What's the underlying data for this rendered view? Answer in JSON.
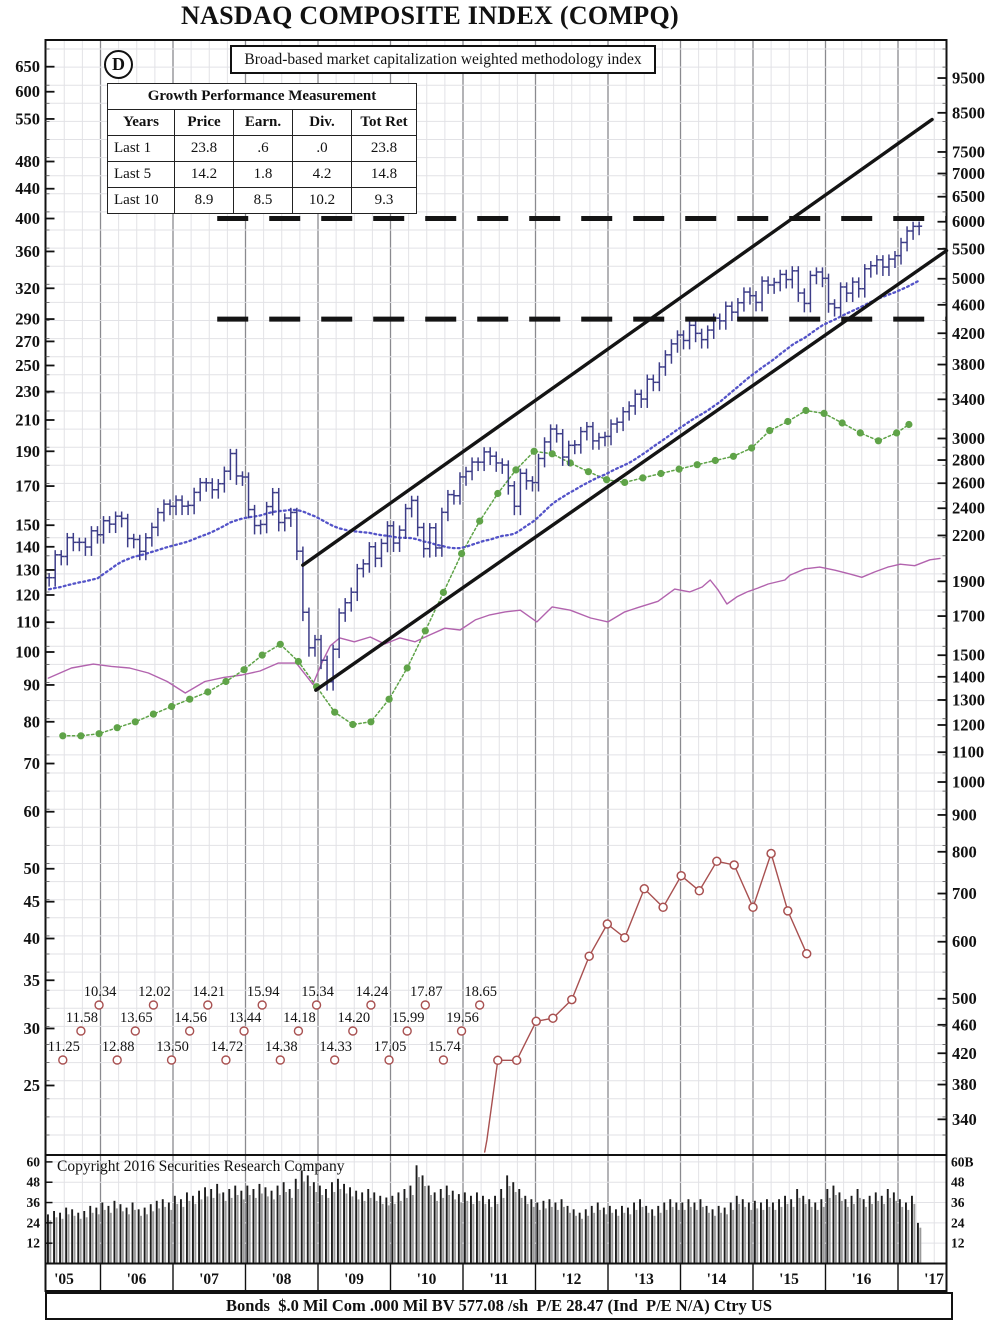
{
  "title": "NASDAQ COMPOSITE INDEX (COMPQ)",
  "badge_letter": "D",
  "subtitle": "Broad-based market capitalization weighted methodology index",
  "growth_table": {
    "header": "Growth Performance Measurement",
    "columns": [
      "Years",
      "Price",
      "Earn.",
      "Div.",
      "Tot Ret"
    ],
    "rows": [
      [
        "Last 1",
        "23.8",
        ".6",
        ".0",
        "23.8"
      ],
      [
        "Last 5",
        "14.2",
        "1.8",
        "4.2",
        "14.8"
      ],
      [
        "Last 10",
        "8.9",
        "8.5",
        "10.2",
        "9.3"
      ]
    ]
  },
  "copyright_text": "Copyright 2016 Securities Research Company",
  "footer_text": "Bonds  $.0 Mil Com .000 Mil BV 577.08 /sh  P/E 28.47 (Ind  P/E N/A) Ctry US",
  "colors": {
    "price": "#3d3d88",
    "ma": "#5353c8",
    "earnings": "#5fa348",
    "relative": "#b263ae",
    "pe": "#a85050",
    "trend": "#141414",
    "grid_minor": "#e2e2e6",
    "grid_year": "#8a8a8f",
    "border": "#111111",
    "volume_dark": "#1d1d1d",
    "volume_gray": "#9a9a9a"
  },
  "chart_data": {
    "type": "line",
    "title": "NASDAQ Composite monthly price bars (log scale) with 36-month moving average, earnings line, relative line, quarterly P/E markers and monthly volume",
    "x_range_years": [
      2005.23,
      2017.68
    ],
    "grid": true,
    "left_axis_ticks": [
      650,
      600,
      550,
      480,
      440,
      400,
      360,
      320,
      290,
      270,
      250,
      230,
      210,
      190,
      170,
      150,
      140,
      130,
      120,
      110,
      100,
      90,
      80,
      70,
      60,
      50,
      45,
      40,
      35,
      30,
      25
    ],
    "right_axis_ticks": [
      9500,
      8500,
      7500,
      7000,
      6500,
      6000,
      5500,
      5000,
      4600,
      4200,
      3800,
      3400,
      3000,
      2800,
      2600,
      2400,
      2200,
      1900,
      1700,
      1500,
      1400,
      1300,
      1200,
      1100,
      1000,
      900,
      800,
      700,
      600,
      500,
      460,
      420,
      380,
      340
    ],
    "year_labels": [
      "'05",
      "'06",
      "'07",
      "'08",
      "'09",
      "'10",
      "'11",
      "'12",
      "'13",
      "'14",
      "'15",
      "'16",
      "'17"
    ],
    "dashed_resistance_levels_left_scale": [
      400,
      290
    ],
    "dashed_start_year": 2007.61,
    "trend_channel": [
      {
        "from": [
          2008.79,
          132
        ],
        "to": [
          2017.47,
          549
        ]
      },
      {
        "from": [
          2008.97,
          88.5
        ],
        "to": [
          2017.72,
          364
        ]
      }
    ],
    "price_monthly": {
      "start_year_month": "2005-04",
      "closes": [
        1922,
        2068,
        2057,
        2185,
        2152,
        2152,
        2120,
        2233,
        2205,
        2306,
        2281,
        2340,
        2323,
        2179,
        2172,
        2091,
        2184,
        2258,
        2367,
        2432,
        2415,
        2464,
        2416,
        2422,
        2525,
        2605,
        2603,
        2546,
        2596,
        2702,
        2859,
        2661,
        2652,
        2390,
        2271,
        2279,
        2413,
        2523,
        2293,
        2326,
        2368,
        2092,
        1721,
        1536,
        1577,
        1476,
        1378,
        1529,
        1717,
        1774,
        1835,
        1979,
        2009,
        2122,
        2045,
        2145,
        2269,
        2147,
        2238,
        2398,
        2461,
        2257,
        2109,
        2255,
        2114,
        2369,
        2507,
        2498,
        2653,
        2700,
        2782,
        2781,
        2874,
        2835,
        2774,
        2756,
        2579,
        2415,
        2684,
        2620,
        2605,
        2814,
        2967,
        3092,
        3046,
        2827,
        2935,
        2940,
        3067,
        3116,
        2977,
        3010,
        3020,
        3142,
        3160,
        3268,
        3329,
        3456,
        3403,
        3626,
        3590,
        3771,
        3920,
        4060,
        4177,
        4104,
        4308,
        4199,
        4115,
        4243,
        4408,
        4370,
        4580,
        4493,
        4631,
        4792,
        4736,
        4635,
        4964,
        4901,
        4941,
        5070,
        4987,
        5128,
        4777,
        4620,
        5054,
        5109,
        5007,
        4614,
        4558,
        4870,
        4775,
        4948,
        4843,
        5162,
        5213,
        5312,
        5190,
        5324,
        5383,
        5615,
        5825,
        5912,
        5915
      ]
    },
    "ma_window_months": 36,
    "ma_pre_closes": [
      1321,
      1338,
      1341,
      1464,
      1596,
      1623,
      1735,
      1810,
      1787,
      1932,
      1960,
      2003,
      2066,
      2030,
      1994,
      1920,
      1987,
      2048,
      1887,
      1838,
      1897,
      1975,
      2097,
      2175,
      2062,
      2052,
      1999
    ],
    "earnings_line_left_scale": {
      "start_year": 2005.48,
      "step_years": 0.25,
      "values": [
        76.5,
        76.5,
        77,
        78.5,
        80,
        82,
        84,
        86,
        88,
        91,
        94.5,
        99,
        102.5,
        97,
        89.5,
        82.5,
        79.3,
        80,
        86,
        95,
        107,
        121,
        137,
        152,
        166,
        179,
        190,
        188.5,
        183,
        178,
        173.5,
        172,
        174.5,
        177,
        179.5,
        182,
        184.5,
        187,
        192,
        203,
        209,
        216.5,
        214.5,
        208,
        201.5,
        196.5,
        201.5
      ],
      "tail_points": [
        [
          2017.15,
          207
        ]
      ]
    },
    "relative_line_left_scale": {
      "points": [
        [
          2005.28,
          92
        ],
        [
          2005.6,
          95
        ],
        [
          2005.9,
          96.2
        ],
        [
          2006.15,
          95.5
        ],
        [
          2006.4,
          95
        ],
        [
          2006.66,
          93.5
        ],
        [
          2006.92,
          91
        ],
        [
          2007.17,
          87.7
        ],
        [
          2007.44,
          91
        ],
        [
          2007.7,
          92.2
        ],
        [
          2007.95,
          92.9
        ],
        [
          2008.2,
          94.1
        ],
        [
          2008.45,
          96.5
        ],
        [
          2008.7,
          96.5
        ],
        [
          2008.93,
          90.2
        ],
        [
          2009.06,
          96.9
        ],
        [
          2009.17,
          102
        ],
        [
          2009.3,
          104.6
        ],
        [
          2009.5,
          103.3
        ],
        [
          2009.72,
          104.9
        ],
        [
          2009.92,
          102.6
        ],
        [
          2010.13,
          104.6
        ],
        [
          2010.34,
          103.3
        ],
        [
          2010.54,
          105.6
        ],
        [
          2010.75,
          107.9
        ],
        [
          2010.96,
          107.3
        ],
        [
          2011.17,
          110.8
        ],
        [
          2011.37,
          112.6
        ],
        [
          2011.58,
          113.7
        ],
        [
          2011.79,
          114.3
        ],
        [
          2012.02,
          110.1
        ],
        [
          2012.23,
          115.5
        ],
        [
          2012.48,
          114.3
        ],
        [
          2012.76,
          111.5
        ],
        [
          2013,
          110.1
        ],
        [
          2013.23,
          113.7
        ],
        [
          2013.44,
          115.5
        ],
        [
          2013.69,
          117.6
        ],
        [
          2013.92,
          122.3
        ],
        [
          2014.13,
          121.2
        ],
        [
          2014.3,
          123.1
        ],
        [
          2014.41,
          125.9
        ],
        [
          2014.52,
          121.9
        ],
        [
          2014.64,
          116.6
        ],
        [
          2014.78,
          119.3
        ],
        [
          2014.92,
          121.2
        ],
        [
          2015.07,
          122.7
        ],
        [
          2015.21,
          124.3
        ],
        [
          2015.44,
          125.9
        ],
        [
          2015.51,
          127.9
        ],
        [
          2015.72,
          130.5
        ],
        [
          2015.92,
          131.2
        ],
        [
          2016.13,
          129.9
        ],
        [
          2016.34,
          128.3
        ],
        [
          2016.5,
          127
        ],
        [
          2016.68,
          129.2
        ],
        [
          2016.86,
          131.2
        ],
        [
          2017.03,
          132.4
        ],
        [
          2017.23,
          131.8
        ],
        [
          2017.44,
          134.3
        ],
        [
          2017.58,
          134.9
        ]
      ]
    },
    "pe_quarterly_labels": {
      "start_year": 2005.48,
      "step_years": 0.25,
      "values": [
        "11.25",
        "11.58",
        "10.34",
        "12.88",
        "13.65",
        "12.02",
        "13.50",
        "14.56",
        "14.21",
        "14.72",
        "13.44",
        "15.94",
        "14.38",
        "14.18",
        "15.34",
        "14.33",
        "14.20",
        "14.24",
        "17.05",
        "15.99",
        "17.87",
        "15.74",
        "19.56",
        "18.65"
      ]
    },
    "pe_line_left_scale": {
      "points": [
        [
          2011.33,
          21
        ],
        [
          2011.48,
          27.1
        ],
        [
          2011.74,
          27.1
        ],
        [
          2012.01,
          30.7
        ],
        [
          2012.24,
          31
        ],
        [
          2012.5,
          32.9
        ],
        [
          2012.74,
          37.8
        ],
        [
          2012.99,
          41.9
        ],
        [
          2013.23,
          40.1
        ],
        [
          2013.5,
          46.9
        ],
        [
          2013.76,
          44.2
        ],
        [
          2014.01,
          48.9
        ],
        [
          2014.26,
          46.6
        ],
        [
          2014.5,
          51.2
        ],
        [
          2014.74,
          50.6
        ],
        [
          2015,
          44.2
        ],
        [
          2015.25,
          52.5
        ],
        [
          2015.48,
          43.7
        ],
        [
          2015.74,
          38.1
        ]
      ]
    },
    "volume_monthly_billions": {
      "start_year_month": "2005-04",
      "values": [
        29,
        31,
        30,
        33,
        32,
        30,
        31,
        34,
        33,
        36,
        34,
        37,
        35,
        33,
        36,
        32,
        33,
        35,
        37,
        38,
        36,
        40,
        38,
        42,
        40,
        43,
        45,
        44,
        47,
        42,
        44,
        46,
        43,
        46,
        44,
        47,
        45,
        43,
        46,
        48,
        44,
        50,
        55,
        52,
        48,
        46,
        44,
        48,
        50,
        47,
        45,
        43,
        42,
        44,
        42,
        40,
        39,
        40,
        42,
        44,
        46,
        58,
        52,
        46,
        42,
        44,
        46,
        43,
        41,
        42,
        40,
        42,
        40,
        38,
        40,
        44,
        52,
        48,
        44,
        40,
        38,
        36,
        37,
        38,
        36,
        38,
        34,
        32,
        30,
        32,
        34,
        36,
        33,
        34,
        32,
        34,
        33,
        36,
        38,
        34,
        32,
        34,
        36,
        38,
        36,
        36,
        38,
        36,
        38,
        34,
        32,
        34,
        33,
        36,
        40,
        38,
        36,
        37,
        36,
        38,
        36,
        38,
        40,
        38,
        44,
        40,
        38,
        36,
        38,
        44,
        46,
        42,
        38,
        40,
        44,
        38,
        40,
        42,
        40,
        44,
        42,
        38,
        36,
        40,
        24
      ]
    },
    "volume_axis_ticks": [
      60,
      48,
      36,
      24,
      12
    ],
    "volume_axis_right_labels": [
      "60B",
      "48",
      "36",
      "24",
      "12"
    ]
  }
}
